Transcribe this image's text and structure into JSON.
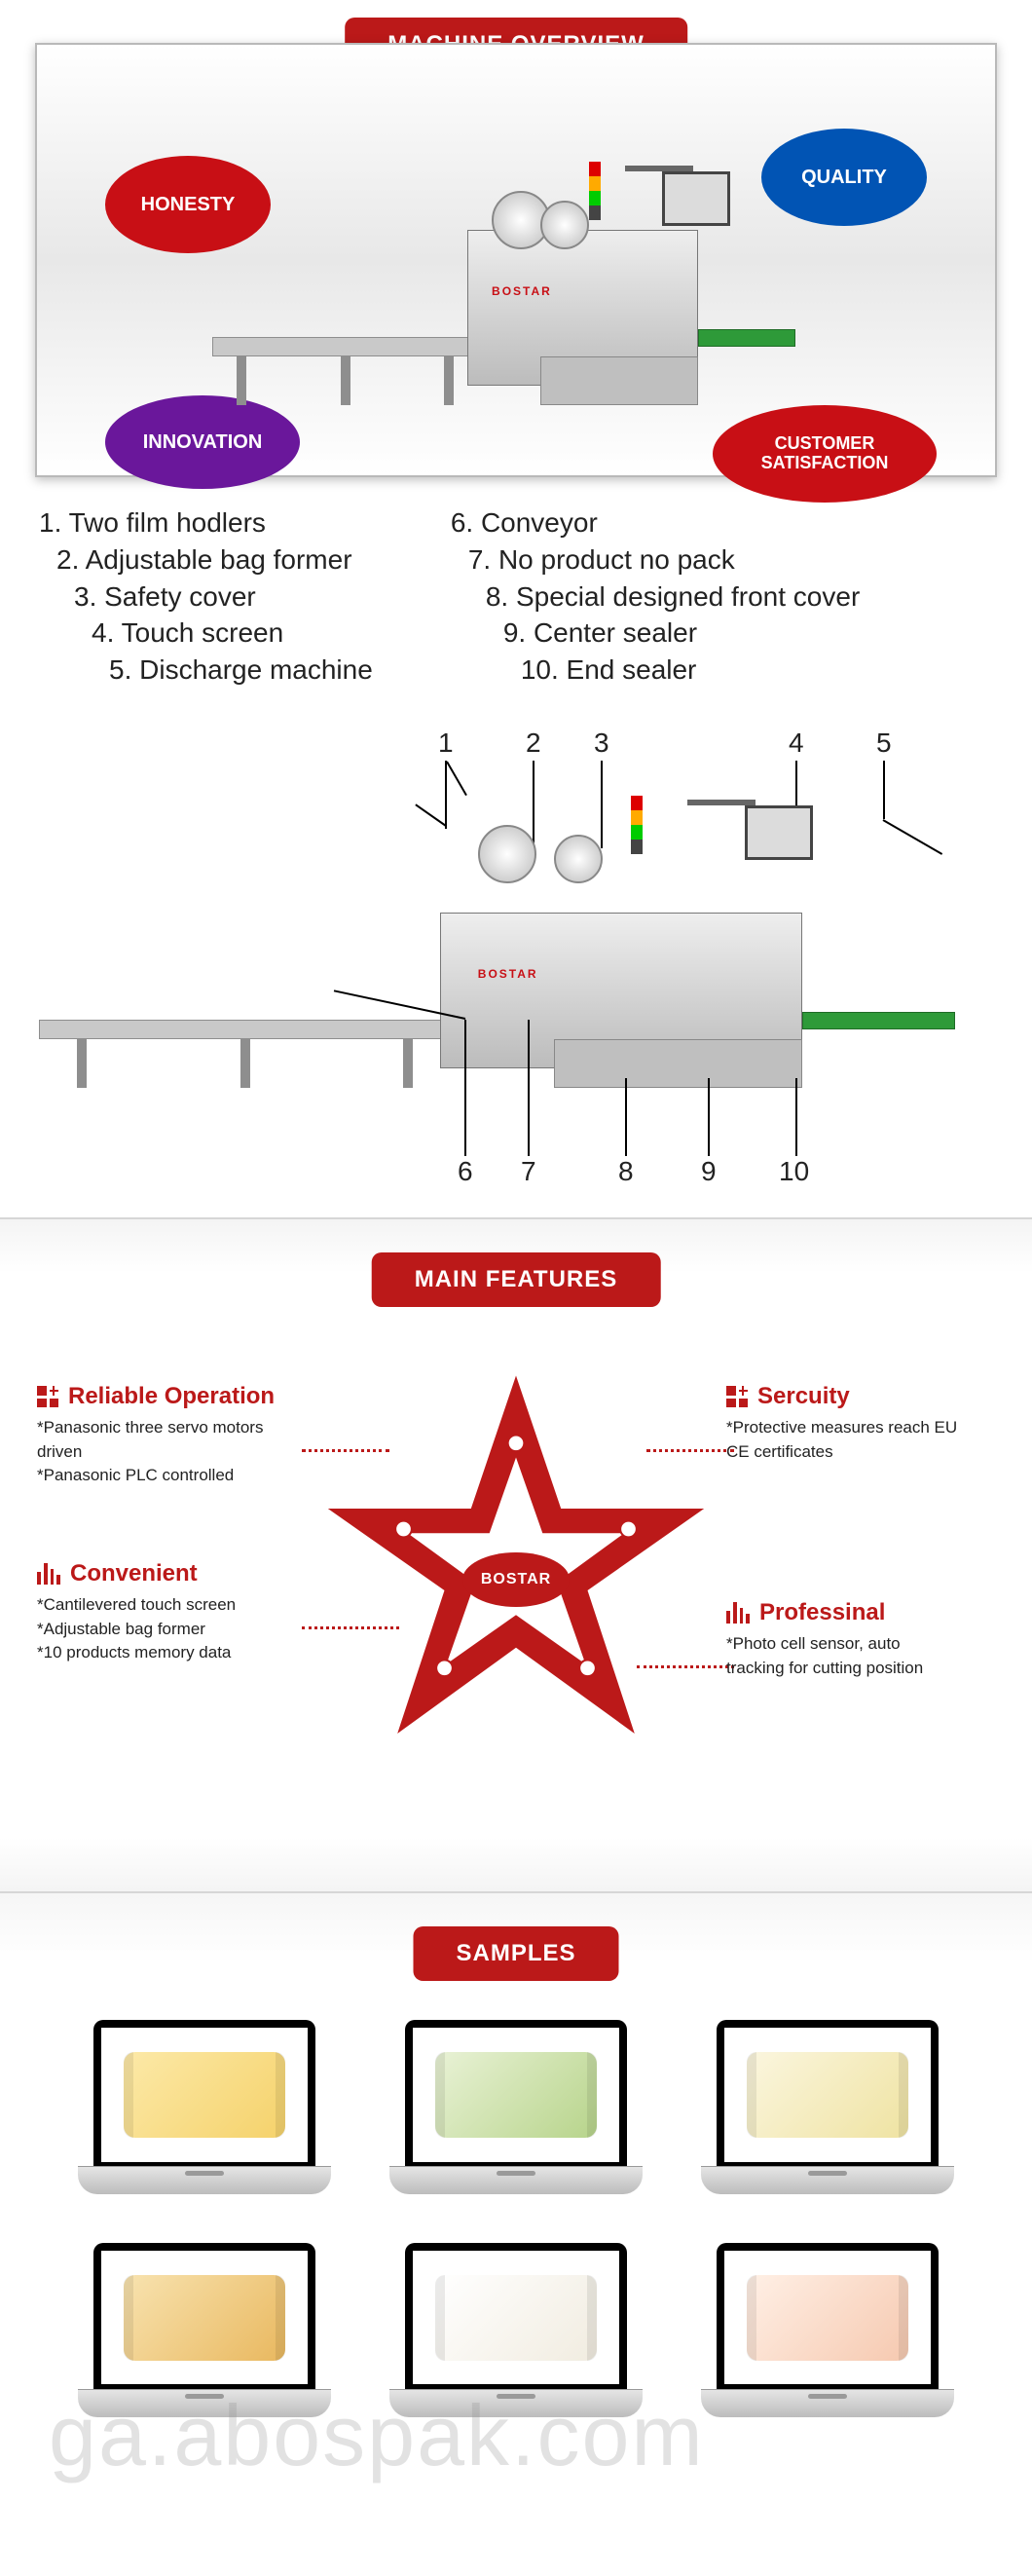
{
  "overview": {
    "header": "MACHINE OVERVIEW",
    "tags": {
      "honesty": {
        "label": "HONESTY",
        "color": "#c80f15"
      },
      "quality": {
        "label": "QUALITY",
        "color": "#0154b4"
      },
      "innovation": {
        "label": "INNOVATION",
        "color": "#6a179b"
      },
      "customer": {
        "label": "CUSTOMER\nSATISFACTION",
        "color": "#c80f15"
      }
    },
    "brand_label": "BOSTAR"
  },
  "parts": {
    "col1": [
      "1. Two film hodlers",
      "2. Adjustable bag  former",
      "3. Safety cover",
      "4. Touch screen",
      "5. Discharge machine"
    ],
    "col2": [
      "6. Conveyor",
      "7. No product no pack",
      "8. Special designed front cover",
      "9. Center sealer",
      "10. End sealer"
    ],
    "pointer_numbers": [
      "1",
      "2",
      "3",
      "4",
      "5",
      "6",
      "7",
      "8",
      "9",
      "10"
    ],
    "brand_label": "BOSTAR"
  },
  "features": {
    "header": "MAIN FEATURES",
    "star_color": "#bb1919",
    "star_label": "BOSTAR",
    "items": {
      "reliable": {
        "title": "Reliable Operation",
        "lines": [
          "*Panasonic three servo motors driven",
          "*Panasonic PLC controlled"
        ],
        "icon": "grid-plus"
      },
      "security": {
        "title": "Sercuity",
        "lines": [
          "*Protective measures reach EU",
          "CE certificates"
        ],
        "icon": "grid-plus"
      },
      "convenient": {
        "title": "Convenient",
        "lines": [
          "*Cantilevered touch screen",
          "*Adjustable bag former",
          "*10 products memory data"
        ],
        "icon": "bars"
      },
      "professional": {
        "title": "Professinal",
        "lines": [
          "*Photo cell sensor, auto",
          "tracking for cutting position"
        ],
        "icon": "bars"
      }
    }
  },
  "samples": {
    "header": "SAMPLES",
    "items": [
      {
        "name": "sample-bread-stick",
        "bg": "linear-gradient(135deg,#fce9a8,#f5d26b)"
      },
      {
        "name": "sample-avocado",
        "bg": "linear-gradient(135deg,#e9f2d6,#b7d48b)"
      },
      {
        "name": "sample-bun",
        "bg": "linear-gradient(135deg,#fbf6df,#efe3a2)"
      },
      {
        "name": "sample-croissant",
        "bg": "linear-gradient(135deg,#f8e3b0,#e9b85f)"
      },
      {
        "name": "sample-steamed-bun",
        "bg": "linear-gradient(135deg,#ffffff,#f1ece0)"
      },
      {
        "name": "sample-cake",
        "bg": "linear-gradient(135deg,#fff0e6,#f6c9b0)"
      }
    ]
  },
  "watermark": "ga.abospak.com",
  "palette": {
    "brand_red": "#bb1919",
    "panel_border": "#b9b9b9",
    "text": "#222222"
  }
}
